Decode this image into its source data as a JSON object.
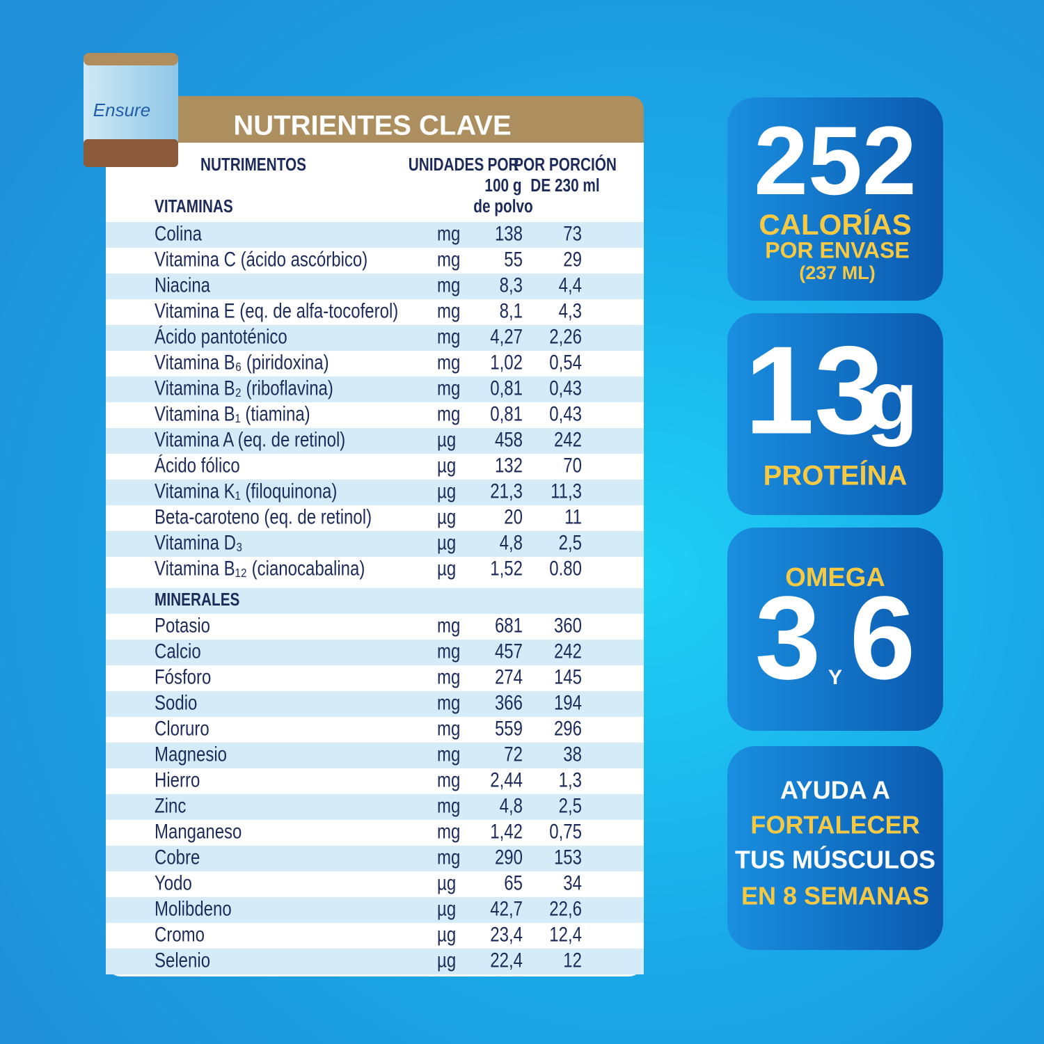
{
  "product": {
    "brand": "Ensure"
  },
  "table": {
    "title": "NUTRIENTES CLAVE",
    "columns": {
      "name": [
        "NUTRIMENTOS"
      ],
      "unit": [
        "UNIDADES"
      ],
      "per100": [
        "POR",
        "100 g",
        "de polvo"
      ],
      "portion": [
        "POR PORCIÓN",
        "DE 230 ml"
      ]
    },
    "sections": [
      {
        "title": "VITAMINAS",
        "rows": [
          [
            "Colina",
            "mg",
            "138",
            "73"
          ],
          [
            "Vitamina C (ácido ascórbico)",
            "mg",
            "55",
            "29"
          ],
          [
            "Niacina",
            "mg",
            "8,3",
            "4,4"
          ],
          [
            "Vitamina E (eq. de alfa-tocoferol)",
            "mg",
            "8,1",
            "4,3"
          ],
          [
            "Ácido pantoténico",
            "mg",
            "4,27",
            "2,26"
          ],
          [
            "Vitamina B₆ (piridoxina)",
            "mg",
            "1,02",
            "0,54"
          ],
          [
            "Vitamina B₂ (riboflavina)",
            "mg",
            "0,81",
            "0,43"
          ],
          [
            "Vitamina B₁ (tiamina)",
            "mg",
            "0,81",
            "0,43"
          ],
          [
            "Vitamina A (eq. de retinol)",
            "µg",
            "458",
            "242"
          ],
          [
            "Ácido fólico",
            "µg",
            "132",
            "70"
          ],
          [
            "Vitamina K₁ (filoquinona)",
            "µg",
            "21,3",
            "11,3"
          ],
          [
            "Beta-caroteno (eq. de retinol)",
            "µg",
            "20",
            "11"
          ],
          [
            "Vitamina D₃",
            "µg",
            "4,8",
            "2,5"
          ],
          [
            "Vitamina B₁₂ (cianocabalina)",
            "µg",
            "1,52",
            "0.80"
          ]
        ]
      },
      {
        "title": "MINERALES",
        "rows": [
          [
            "Potasio",
            "mg",
            "681",
            "360"
          ],
          [
            "Calcio",
            "mg",
            "457",
            "242"
          ],
          [
            "Fósforo",
            "mg",
            "274",
            "145"
          ],
          [
            "Sodio",
            "mg",
            "366",
            "194"
          ],
          [
            "Cloruro",
            "mg",
            "559",
            "296"
          ],
          [
            "Magnesio",
            "mg",
            "72",
            "38"
          ],
          [
            "Hierro",
            "mg",
            "2,44",
            "1,3"
          ],
          [
            "Zinc",
            "mg",
            "4,8",
            "2,5"
          ],
          [
            "Manganeso",
            "mg",
            "1,42",
            "0,75"
          ],
          [
            "Cobre",
            "mg",
            "290",
            "153"
          ],
          [
            "Yodo",
            "µg",
            "65",
            "34"
          ],
          [
            "Molibdeno",
            "µg",
            "42,7",
            "22,6"
          ],
          [
            "Cromo",
            "µg",
            "23,4",
            "12,4"
          ],
          [
            "Selenio",
            "µg",
            "22,4",
            "12"
          ]
        ]
      }
    ]
  },
  "panels": {
    "calories": {
      "number": "252",
      "label": "CALORÍAS",
      "line2": "POR ENVASE",
      "line3": "(237 ML)"
    },
    "protein": {
      "number": "13",
      "unit": "g",
      "label": "PROTEÍNA"
    },
    "omega": {
      "label": "OMEGA",
      "first": "3",
      "joiner": "Y",
      "second": "6"
    },
    "muscles": {
      "lines": [
        "AYUDA A",
        "FORTALECER",
        "TUS MÚSCULOS",
        "EN 8 SEMANAS"
      ]
    }
  }
}
